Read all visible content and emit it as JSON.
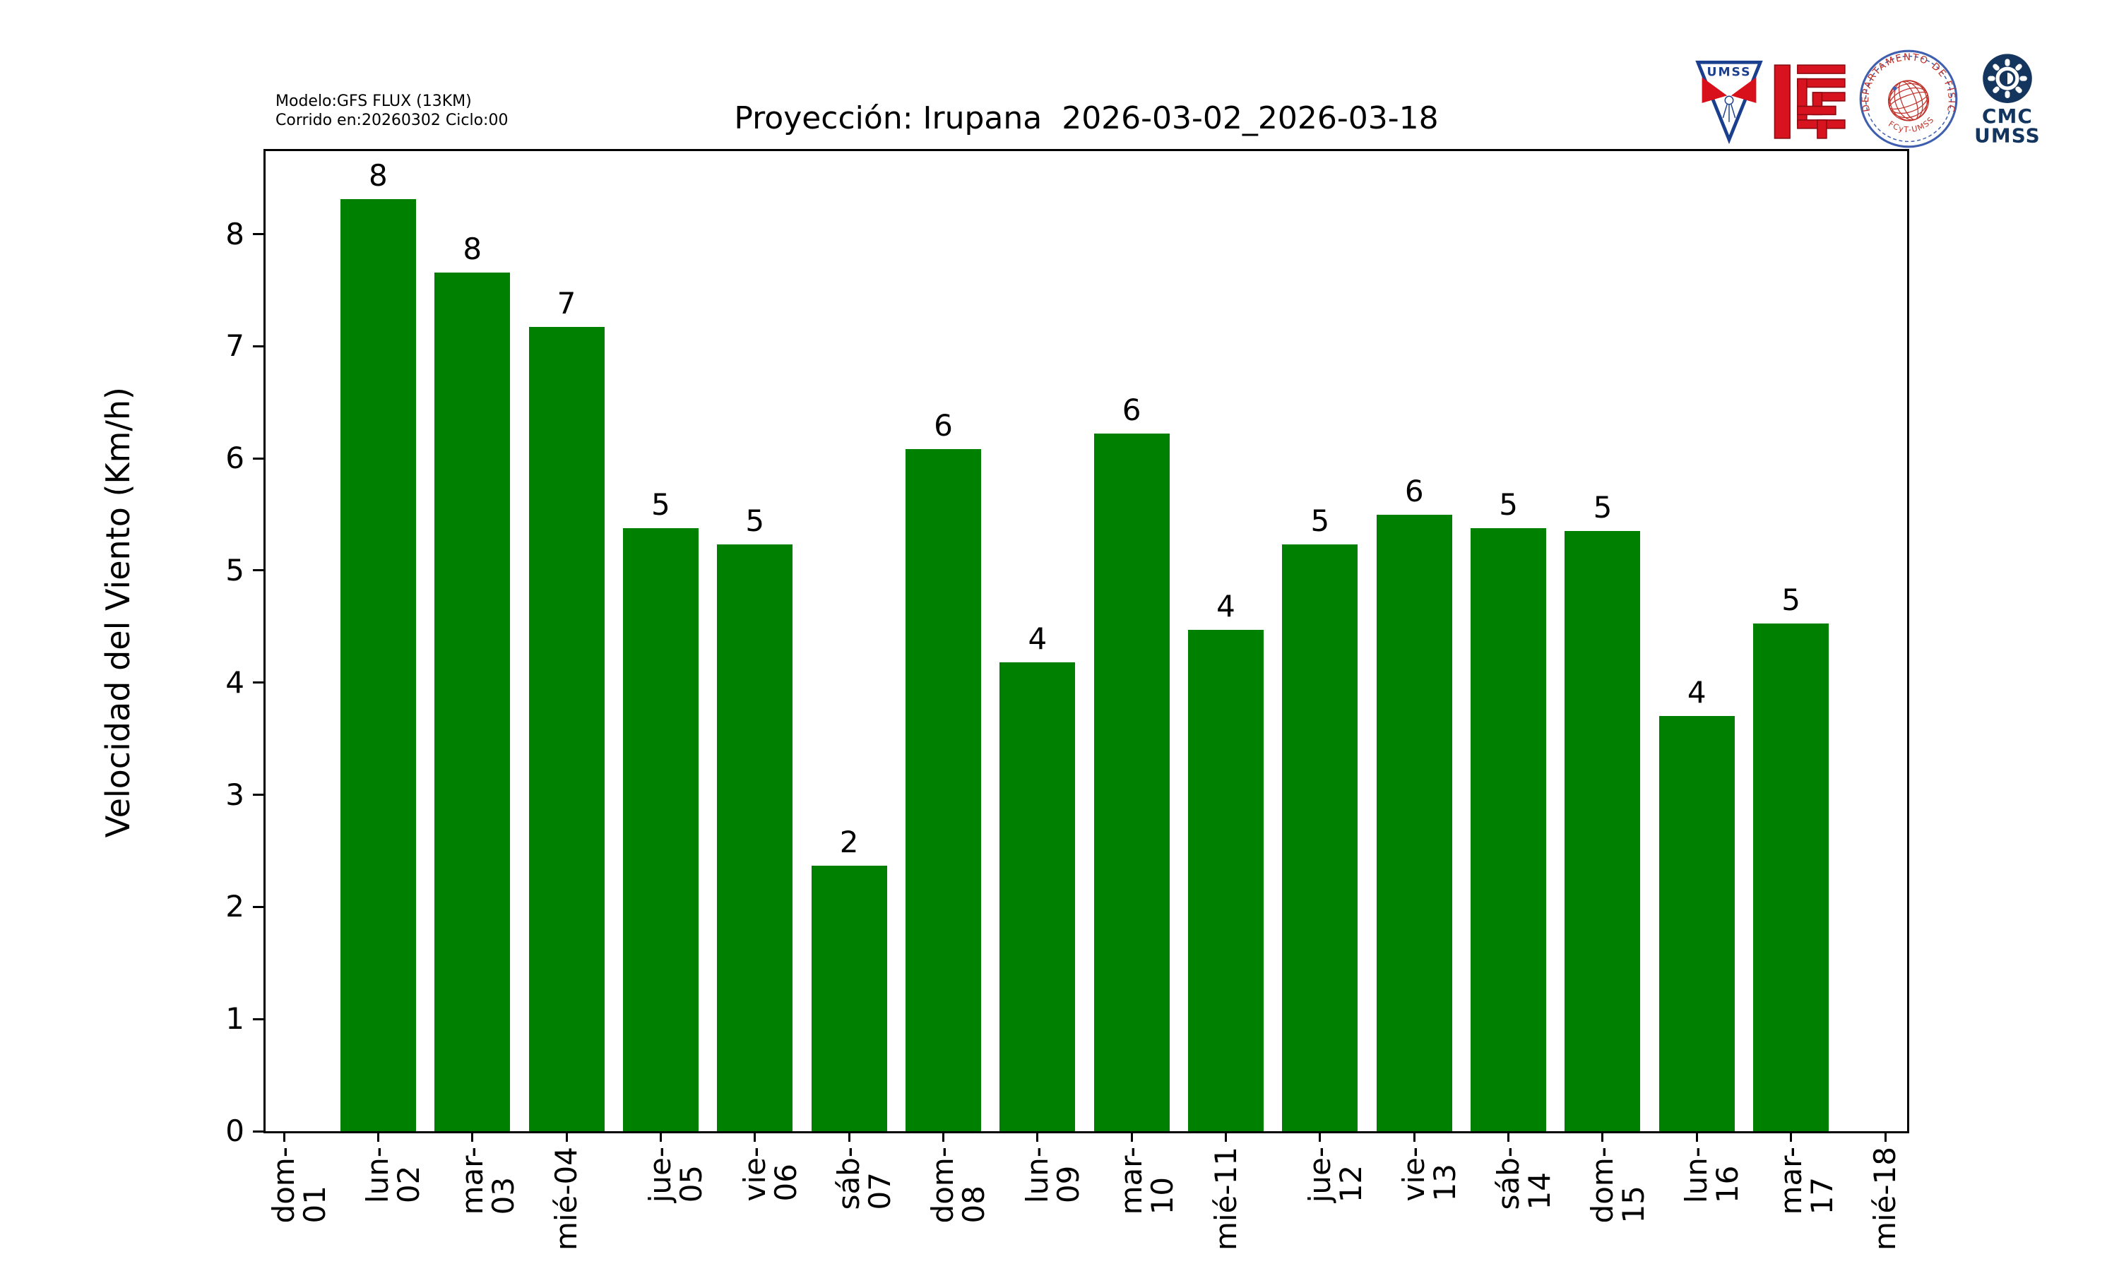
{
  "header": {
    "model_line1": "Modelo:GFS FLUX (13KM)",
    "model_line2": "Corrido en:20260302 Ciclo:00"
  },
  "chart_data": {
    "type": "bar",
    "title": "Proyección: Irupana  2026-03-02_2026-03-18",
    "xlabel": "",
    "ylabel": "Velocidad del Viento (Km/h)",
    "categories": [
      "dom-01",
      "lun-02",
      "mar-03",
      "mié-04",
      "jue-05",
      "vie-06",
      "sáb-07",
      "dom-08",
      "lun-09",
      "mar-10",
      "mié-11",
      "jue-12",
      "vie-13",
      "sáb-14",
      "dom-15",
      "lun-16",
      "mar-17",
      "mié-18"
    ],
    "values": [
      0,
      8.31,
      7.66,
      7.17,
      5.38,
      5.23,
      2.37,
      6.08,
      4.18,
      6.22,
      4.47,
      5.23,
      5.5,
      5.38,
      5.35,
      3.7,
      4.53,
      0
    ],
    "bar_labels": [
      "",
      "8",
      "8",
      "7",
      "5",
      "5",
      "2",
      "6",
      "4",
      "6",
      "4",
      "5",
      "6",
      "5",
      "5",
      "4",
      "5",
      ""
    ],
    "yticks": [
      0,
      1,
      2,
      3,
      4,
      5,
      6,
      7,
      8
    ],
    "ylim": [
      0,
      8.74
    ],
    "bar_color": "#008000",
    "grid": false,
    "legend": null
  },
  "logos": {
    "umss_pennant": {
      "label": "UMSS",
      "blue": "#1b3f8f",
      "red": "#d8101c"
    },
    "fcyt": {
      "red": "#d6131e",
      "dark_red": "#8c0c12"
    },
    "fisica_seal": {
      "ring_text": "DEPARTAMENTO DE FÍSICA",
      "bottom_text": "FCyT-UMSS",
      "blue": "#3f5fae",
      "red": "#c03028"
    },
    "cmc": {
      "line1": "CMC",
      "line2": "UMSS",
      "navy": "#14355e"
    }
  }
}
